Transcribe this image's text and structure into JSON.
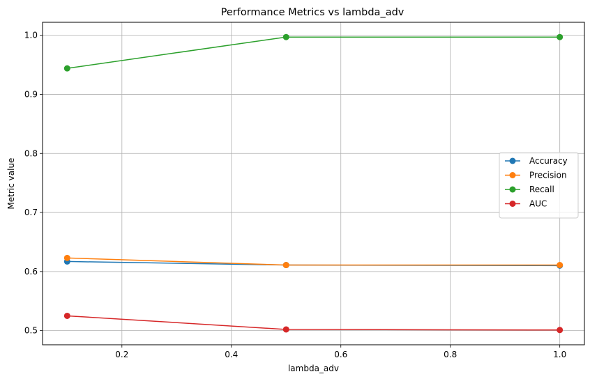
{
  "chart_data": {
    "type": "line",
    "title": "Performance Metrics vs lambda_adv",
    "xlabel": "lambda_adv",
    "ylabel": "Metric value",
    "x": [
      0.1,
      0.5,
      1.0
    ],
    "xlim": [
      0.055,
      1.045
    ],
    "ylim": [
      0.476,
      1.022
    ],
    "xticks": [
      0.2,
      0.4,
      0.6,
      0.8,
      1.0
    ],
    "xtick_labels": [
      "0.2",
      "0.4",
      "0.6",
      "0.8",
      "1.0"
    ],
    "yticks": [
      0.5,
      0.6,
      0.7,
      0.8,
      0.9,
      1.0
    ],
    "ytick_labels": [
      "0.5",
      "0.6",
      "0.7",
      "0.8",
      "0.9",
      "1.0"
    ],
    "grid": true,
    "legend_position": "center-right",
    "series": [
      {
        "name": "Accuracy",
        "color": "#1f77b4",
        "values": [
          0.617,
          0.611,
          0.61
        ]
      },
      {
        "name": "Precision",
        "color": "#ff7f0e",
        "values": [
          0.623,
          0.611,
          0.611
        ]
      },
      {
        "name": "Recall",
        "color": "#2ca02c",
        "values": [
          0.944,
          0.997,
          0.997
        ]
      },
      {
        "name": "AUC",
        "color": "#d62728",
        "values": [
          0.525,
          0.502,
          0.501
        ]
      }
    ]
  }
}
